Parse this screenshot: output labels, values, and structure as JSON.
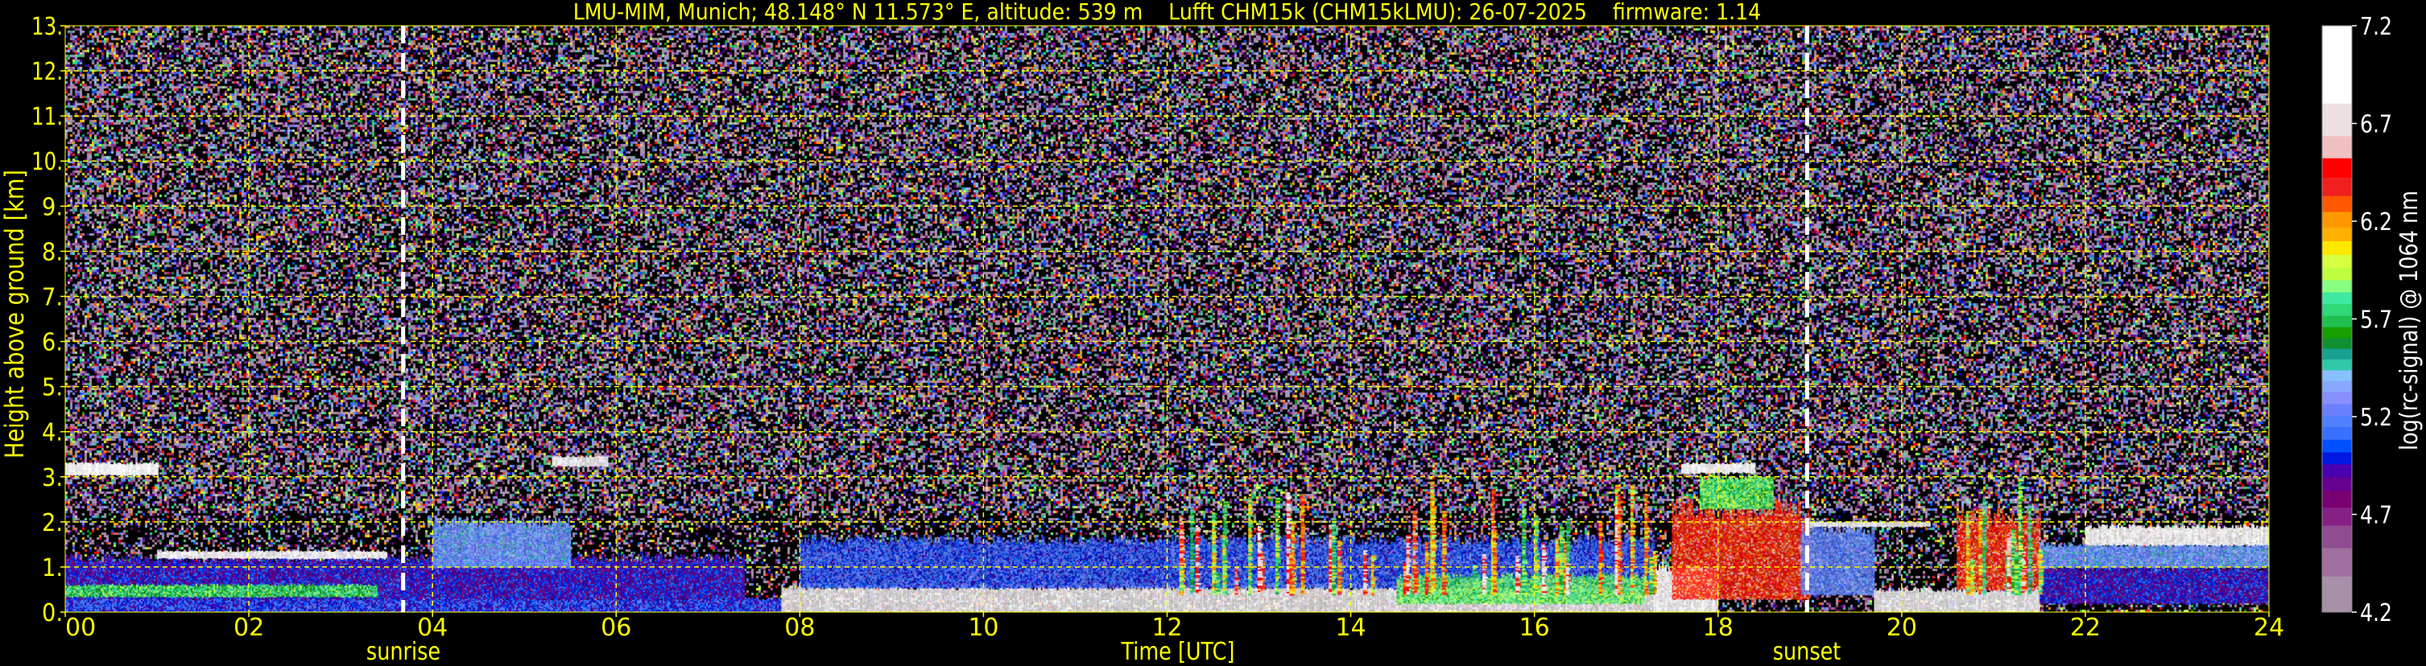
{
  "chart_data": {
    "type": "heatmap",
    "title": "LMU-MIM, Munich; 48.148° N 11.573° E, altitude: 539 m    Lufft CHM15k (CHM15kLMU): 26-07-2025    firmware: 1.14",
    "xlabel": "Time [UTC]",
    "ylabel": "Height above ground [km]",
    "xlim": [
      0,
      24
    ],
    "ylim": [
      0,
      13
    ],
    "x_ticks": [
      "00",
      "02",
      "04",
      "06",
      "08",
      "10",
      "12",
      "14",
      "16",
      "18",
      "20",
      "22",
      "24"
    ],
    "y_ticks": [
      "0.",
      "1.",
      "2.",
      "3.",
      "4.",
      "5.",
      "6.",
      "7.",
      "8.",
      "9.",
      "10.",
      "11.",
      "12.",
      "13."
    ],
    "grid": true,
    "grid_color": "#ffff00",
    "events": [
      {
        "label": "sunrise",
        "time": 3.68
      },
      {
        "label": "sunset",
        "time": 18.97
      }
    ],
    "colorbar": {
      "label": "log(rc-signal) @ 1064 nm",
      "range": [
        4.2,
        7.2
      ],
      "ticks": [
        "4.2",
        "4.7",
        "5.2",
        "5.7",
        "6.2",
        "6.7",
        "7.2"
      ],
      "bounds": [
        4.2,
        4.384,
        4.529,
        4.644,
        4.737,
        4.822,
        4.893,
        4.958,
        5.019,
        5.084,
        5.149,
        5.207,
        5.266,
        5.329,
        5.385,
        5.439,
        5.495,
        5.55,
        5.604,
        5.66,
        5.718,
        5.779,
        5.838,
        5.9,
        5.965,
        6.03,
        6.1,
        6.169,
        6.249,
        6.331,
        6.425,
        6.524,
        6.637,
        6.804,
        7.2
      ],
      "colors": [
        "#a890a8",
        "#a070a0",
        "#904c90",
        "#852085",
        "#780070",
        "#660090",
        "#4a00b0",
        "#0018e0",
        "#0050ff",
        "#3870ff",
        "#5080ff",
        "#6a80ff",
        "#8890ff",
        "#88a8ff",
        "#88c0ff",
        "#30c8a8",
        "#18a090",
        "#109030",
        "#18a000",
        "#20c050",
        "#30d878",
        "#40e8a0",
        "#88ff80",
        "#c0ff40",
        "#d8ff40",
        "#ffe800",
        "#ffb000",
        "#ff9800",
        "#ff5800",
        "#f02020",
        "#ff0000",
        "#f0c0c0",
        "#ece0e0",
        "#ffffff"
      ]
    },
    "features": [
      {
        "t": [
          0,
          7.8
        ],
        "h": [
          0.0,
          0.3
        ],
        "value": 5.05
      },
      {
        "t": [
          0,
          7.4
        ],
        "h": [
          0.3,
          1.2
        ],
        "value": 4.95
      },
      {
        "t": [
          0,
          3.4
        ],
        "h": [
          0.35,
          0.6
        ],
        "value": 5.75
      },
      {
        "t": [
          0,
          1.0
        ],
        "h": [
          3.05,
          3.3
        ],
        "value": 7.0
      },
      {
        "t": [
          1.0,
          3.5
        ],
        "h": [
          1.2,
          1.35
        ],
        "value": 6.9
      },
      {
        "t": [
          4.0,
          5.5
        ],
        "h": [
          1.0,
          2.0
        ],
        "value": 5.3
      },
      {
        "t": [
          5.3,
          5.9
        ],
        "h": [
          3.25,
          3.45
        ],
        "value": 7.0
      },
      {
        "t": [
          7.8,
          17.3
        ],
        "h": [
          0.0,
          0.55
        ],
        "value": 6.85
      },
      {
        "t": [
          8.0,
          17.3
        ],
        "h": [
          0.55,
          1.6
        ],
        "value": 5.1
      },
      {
        "t": [
          14.5,
          17.2
        ],
        "h": [
          0.2,
          0.8
        ],
        "value": 5.8
      },
      {
        "t": [
          17.3,
          18.0
        ],
        "h": [
          0.0,
          1.0
        ],
        "value": 6.9
      },
      {
        "t": [
          17.5,
          19.0
        ],
        "h": [
          0.3,
          2.3
        ],
        "value": 6.4
      },
      {
        "t": [
          17.8,
          18.6
        ],
        "h": [
          2.3,
          3.0
        ],
        "value": 5.8
      },
      {
        "t": [
          17.6,
          18.4
        ],
        "h": [
          3.1,
          3.3
        ],
        "value": 7.0
      },
      {
        "t": [
          18.9,
          19.7
        ],
        "h": [
          0.4,
          1.9
        ],
        "value": 5.25
      },
      {
        "t": [
          19.0,
          20.3
        ],
        "h": [
          1.9,
          2.0
        ],
        "value": 6.9
      },
      {
        "t": [
          19.7,
          21.5
        ],
        "h": [
          0.0,
          0.5
        ],
        "value": 6.9
      },
      {
        "t": [
          20.6,
          21.5
        ],
        "h": [
          0.5,
          2.1
        ],
        "value": 6.4
      },
      {
        "t": [
          21.5,
          24.0
        ],
        "h": [
          0.2,
          1.0
        ],
        "value": 4.95
      },
      {
        "t": [
          21.5,
          24.0
        ],
        "h": [
          1.0,
          1.5
        ],
        "value": 5.3
      },
      {
        "t": [
          22.0,
          24.0
        ],
        "h": [
          1.5,
          1.9
        ],
        "value": 6.9
      }
    ]
  }
}
